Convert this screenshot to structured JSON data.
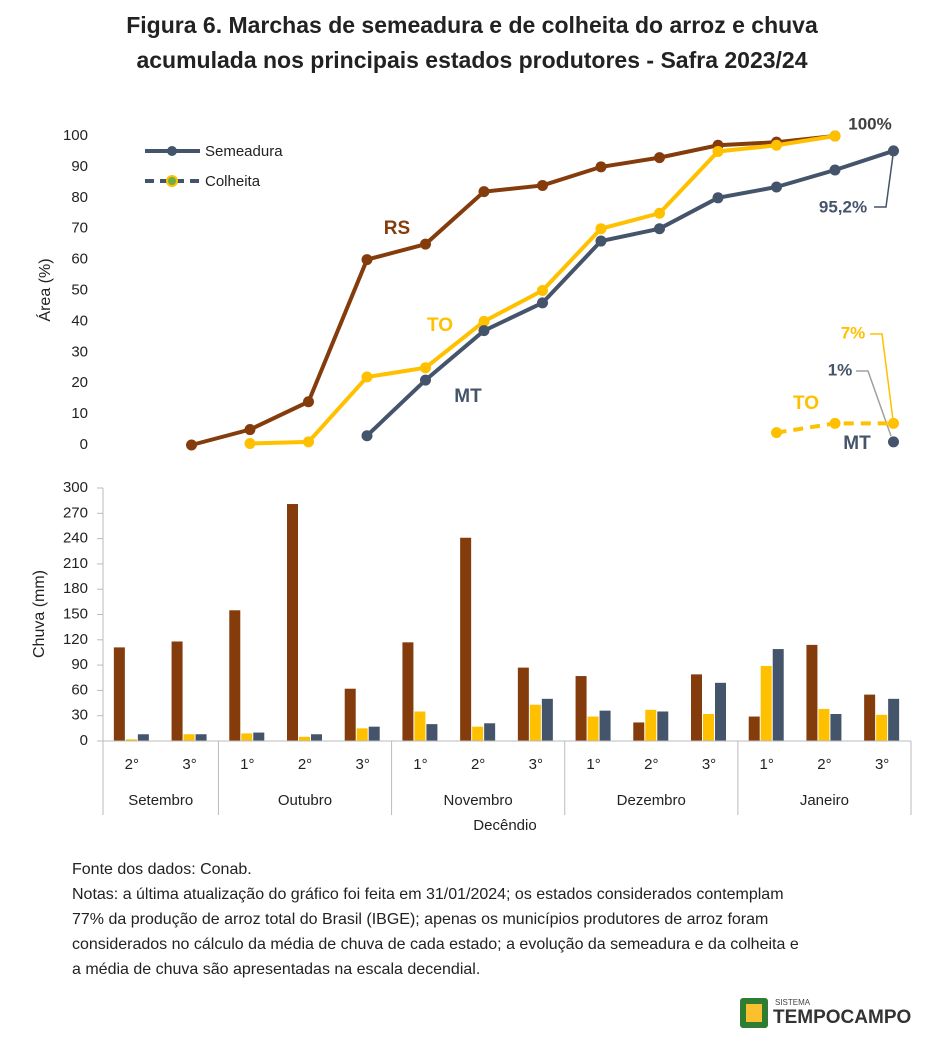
{
  "title": [
    "Figura 6. Marchas de semeadura e de colheita do arroz e chuva",
    "acumulada nos principais estados produtores - Safra 2023/24"
  ],
  "chart_data": [
    {
      "type": "line",
      "ylabel": "Área  (%)",
      "ylim": [
        0,
        100
      ],
      "yticks": [
        0,
        10,
        20,
        30,
        40,
        50,
        60,
        70,
        80,
        90,
        100
      ],
      "legend": [
        "Semeadura",
        "Colheita"
      ],
      "legend_position": "upper left",
      "series": [
        {
          "name": "RS",
          "color": "#843C0C",
          "line_style": "solid",
          "values": [
            null,
            0,
            5,
            14,
            60,
            65,
            82,
            84,
            90,
            93,
            97,
            98,
            100,
            null
          ],
          "value_labels": [
            null,
            null,
            null,
            null,
            null,
            null,
            null,
            null,
            null,
            null,
            null,
            null,
            "100%",
            null
          ]
        },
        {
          "name": "TO",
          "color": "#FFC000",
          "line_style": "solid",
          "values": [
            null,
            null,
            0.5,
            1,
            22,
            25,
            40,
            50,
            70,
            75,
            95,
            97,
            100,
            null
          ]
        },
        {
          "name": "MT",
          "color": "#44546A",
          "line_style": "solid",
          "values": [
            null,
            null,
            null,
            null,
            3,
            21,
            37,
            46,
            66,
            70,
            80,
            83.5,
            89,
            95.2
          ],
          "value_labels": [
            null,
            null,
            null,
            null,
            null,
            null,
            null,
            null,
            null,
            null,
            null,
            null,
            null,
            "95,2%"
          ]
        },
        {
          "name": "TO",
          "color": "#FFC000",
          "line_style": "dashed",
          "values": [
            null,
            null,
            null,
            null,
            null,
            null,
            null,
            null,
            null,
            null,
            null,
            4,
            7,
            7
          ],
          "value_labels": [
            null,
            null,
            null,
            null,
            null,
            null,
            null,
            null,
            null,
            null,
            null,
            null,
            null,
            "7%"
          ]
        },
        {
          "name": "MT",
          "color": "#44546A",
          "line_style": "dashed",
          "values": [
            null,
            null,
            null,
            null,
            null,
            null,
            null,
            null,
            null,
            null,
            null,
            null,
            null,
            1
          ],
          "value_labels": [
            null,
            null,
            null,
            null,
            null,
            null,
            null,
            null,
            null,
            null,
            null,
            null,
            null,
            "1%"
          ]
        }
      ]
    },
    {
      "type": "bar",
      "ylabel": "Chuva (mm)",
      "xlabel": "Decêndio",
      "ylim": [
        0,
        300
      ],
      "yticks": [
        0,
        30,
        60,
        90,
        120,
        150,
        180,
        210,
        240,
        270,
        300
      ],
      "categories": [
        "2°",
        "3°",
        "1°",
        "2°",
        "3°",
        "1°",
        "2°",
        "3°",
        "1°",
        "2°",
        "3°",
        "1°",
        "2°",
        "3°"
      ],
      "groups": [
        {
          "label": "Setembro",
          "size": 2
        },
        {
          "label": "Outubro",
          "size": 3
        },
        {
          "label": "Novembro",
          "size": 3
        },
        {
          "label": "Dezembro",
          "size": 3
        },
        {
          "label": "Janeiro",
          "size": 3
        }
      ],
      "series": [
        {
          "color": "#843C0C",
          "values": [
            111,
            118,
            155,
            281,
            62,
            117,
            241,
            87,
            77,
            22,
            79,
            29,
            114,
            55
          ]
        },
        {
          "color": "#FFC000",
          "values": [
            2,
            8,
            9,
            5,
            15,
            35,
            17,
            43,
            29,
            37,
            32,
            89,
            38,
            31
          ]
        },
        {
          "color": "#44546A",
          "values": [
            8,
            8,
            10,
            8,
            17,
            20,
            21,
            50,
            36,
            35,
            69,
            109,
            32,
            50
          ]
        }
      ]
    }
  ],
  "source": "Fonte dos dados: Conab.",
  "notes": [
    "Notas: a última atualização do gráfico foi feita em 31/01/2024; os estados considerados contemplam",
    "77% da produção de arroz total do Brasil (IBGE); apenas os municípios produtores de arroz foram",
    "considerados no cálculo da média de chuva de cada estado; a evolução da semeadura e da colheita e",
    "a média de chuva são apresentadas na escala decendial."
  ],
  "logo": {
    "small": "SISTEMA",
    "name": "TEMPOCAMPO"
  }
}
